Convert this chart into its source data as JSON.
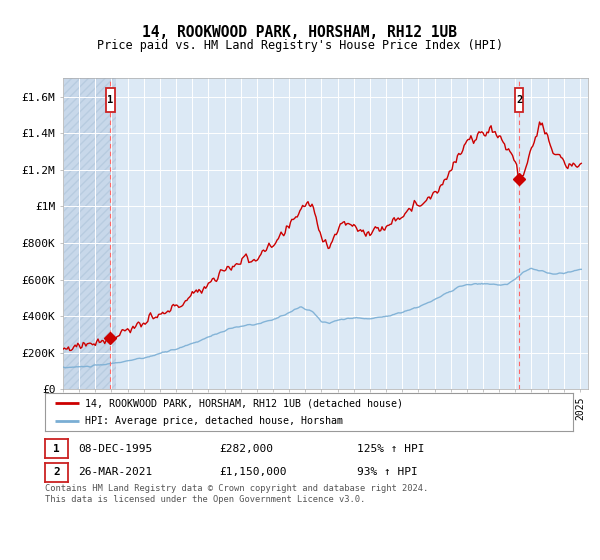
{
  "title": "14, ROOKWOOD PARK, HORSHAM, RH12 1UB",
  "subtitle": "Price paid vs. HM Land Registry's House Price Index (HPI)",
  "legend_line1": "14, ROOKWOOD PARK, HORSHAM, RH12 1UB (detached house)",
  "legend_line2": "HPI: Average price, detached house, Horsham",
  "annotation1_label": "1",
  "annotation1_date": "08-DEC-1995",
  "annotation1_price": "£282,000",
  "annotation1_hpi": "125% ↑ HPI",
  "annotation2_label": "2",
  "annotation2_date": "26-MAR-2021",
  "annotation2_price": "£1,150,000",
  "annotation2_hpi": "93% ↑ HPI",
  "footer": "Contains HM Land Registry data © Crown copyright and database right 2024.\nThis data is licensed under the Open Government Licence v3.0.",
  "hpi_color": "#7aaed4",
  "price_color": "#cc0000",
  "marker_color": "#cc0000",
  "vline_color": "#ff6666",
  "background_color": "#dce9f5",
  "hatch_color": "#c8d8ea",
  "grid_color": "#ffffff",
  "ylim": [
    0,
    1700000
  ],
  "yticks": [
    0,
    200000,
    400000,
    600000,
    800000,
    1000000,
    1200000,
    1400000,
    1600000
  ],
  "ytick_labels": [
    "£0",
    "£200K",
    "£400K",
    "£600K",
    "£800K",
    "£1M",
    "£1.2M",
    "£1.4M",
    "£1.6M"
  ],
  "sale1_year": 1995.92,
  "sale1_value": 282000,
  "sale2_year": 2021.23,
  "sale2_value": 1150000,
  "xmin": 1993.0,
  "xmax": 2025.5
}
